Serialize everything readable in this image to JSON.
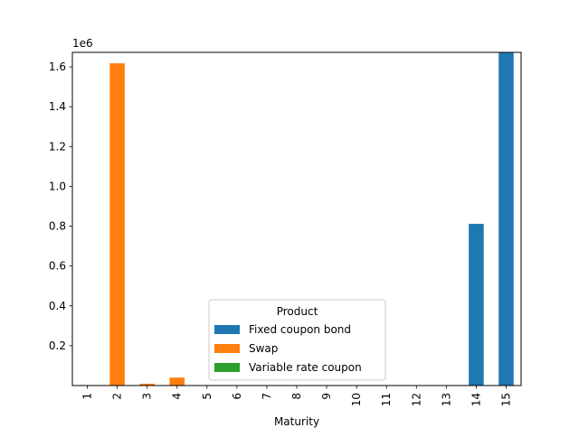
{
  "chart_data": {
    "type": "bar",
    "stacked": true,
    "categories": [
      "1",
      "2",
      "3",
      "4",
      "5",
      "6",
      "7",
      "8",
      "9",
      "10",
      "11",
      "12",
      "13",
      "14",
      "15"
    ],
    "series": [
      {
        "name": "Fixed coupon bond",
        "color": "#1f77b4",
        "values": [
          0,
          0,
          0,
          0,
          0,
          0,
          0,
          0,
          0,
          0,
          0,
          0,
          0,
          812000,
          1673000
        ]
      },
      {
        "name": "Swap",
        "color": "#ff7f0e",
        "values": [
          0,
          1618000,
          9000,
          40000,
          0,
          0,
          0,
          0,
          0,
          0,
          0,
          0,
          0,
          0,
          0
        ]
      },
      {
        "name": "Variable rate coupon",
        "color": "#2ca02c",
        "values": [
          0,
          0,
          0,
          0,
          0,
          0,
          0,
          0,
          0,
          0,
          0,
          0,
          0,
          0,
          0
        ]
      }
    ],
    "xlabel": "Maturity",
    "ylabel": "",
    "ylim": [
      0,
      1673000
    ],
    "yticks": [
      0.2,
      0.4,
      0.6,
      0.8,
      1.0,
      1.2,
      1.4,
      1.6
    ],
    "y_scale_factor": 1000000,
    "y_offset_label": "1e6",
    "legend": {
      "title": "Product",
      "placement": "lower-center"
    },
    "grid": false
  }
}
